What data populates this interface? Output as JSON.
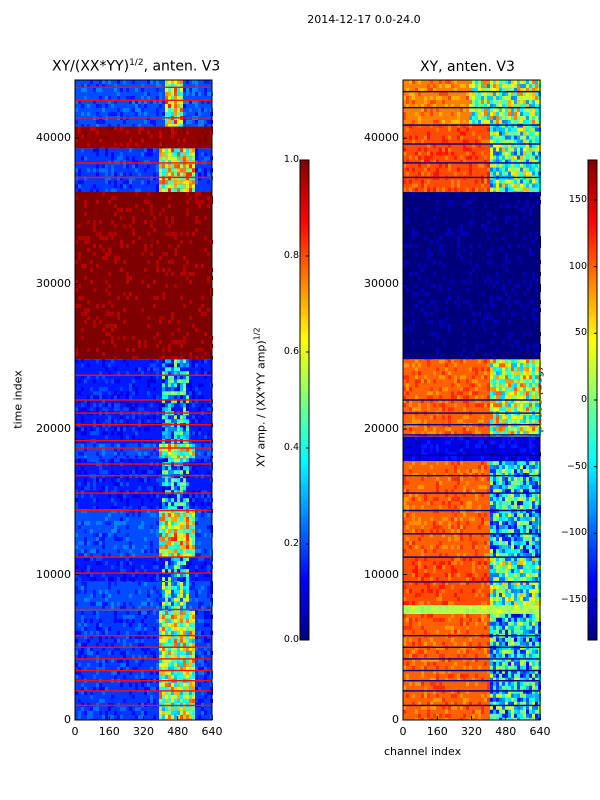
{
  "figure_title": "2014-12-17 0.0-24.0",
  "colors": {
    "jet": [
      "#00007f",
      "#0000ff",
      "#007fff",
      "#00ffff",
      "#7fff7f",
      "#ffff00",
      "#ff7f00",
      "#ff0000",
      "#7f0000"
    ]
  },
  "chart_data": [
    {
      "type": "heatmap",
      "title": "XY/(XX*YY)$^{1/2}$, anten. V3",
      "title_display": "XY/(XX*YY)",
      "title_sup": "1/2",
      "title_suffix": ", anten. V3",
      "xlabel": "",
      "ylabel": "time index",
      "xlim": [
        0,
        640
      ],
      "ylim": [
        0,
        44000
      ],
      "xticks": [
        "0",
        "160",
        "320",
        "480",
        "640"
      ],
      "yticks": [
        "0",
        "10000",
        "20000",
        "30000",
        "40000"
      ],
      "colorbar": {
        "label": "XY amp. / (XX*YY amp)",
        "label_sup": "1/2",
        "range": [
          0.0,
          1.0
        ],
        "ticks": [
          "0.0",
          "0.2",
          "0.4",
          "0.6",
          "0.8",
          "1.0"
        ]
      },
      "bands": [
        {
          "y0": 0,
          "y1": 7500,
          "level": 0.18,
          "hot": [
            380,
            560
          ],
          "hot_level": 0.55
        },
        {
          "y0": 7500,
          "y1": 9500,
          "level": 0.2,
          "hot": [
            400,
            520
          ],
          "hot_level": 0.4
        },
        {
          "y0": 9500,
          "y1": 11200,
          "level": 0.15,
          "hot": [
            400,
            520
          ],
          "hot_level": 0.3
        },
        {
          "y0": 11200,
          "y1": 14500,
          "level": 0.2,
          "hot": [
            380,
            560
          ],
          "hot_level": 0.6
        },
        {
          "y0": 14500,
          "y1": 18000,
          "level": 0.15,
          "hot": [
            400,
            520
          ],
          "hot_level": 0.3
        },
        {
          "y0": 18000,
          "y1": 19000,
          "level": 0.2,
          "hot": [
            380,
            560
          ],
          "hot_level": 0.55
        },
        {
          "y0": 19000,
          "y1": 24800,
          "level": 0.15,
          "hot": [
            400,
            520
          ],
          "hot_level": 0.3
        },
        {
          "y0": 24800,
          "y1": 36300,
          "level": 1.0,
          "hot": [
            0,
            0
          ],
          "hot_level": 1.0
        },
        {
          "y0": 36300,
          "y1": 39300,
          "level": 0.18,
          "hot": [
            380,
            560
          ],
          "hot_level": 0.6
        },
        {
          "y0": 39300,
          "y1": 40800,
          "level": 0.98,
          "hot": [
            0,
            0
          ],
          "hot_level": 0.98
        },
        {
          "y0": 40800,
          "y1": 44000,
          "level": 0.2,
          "hot": [
            420,
            500
          ],
          "hot_level": 0.6
        }
      ],
      "rows_y": [
        1000,
        2000,
        2700,
        3400,
        4200,
        5000,
        5800,
        7600,
        10100,
        11200,
        14400,
        15600,
        16800,
        17600,
        18700,
        19200,
        20300,
        21100,
        22000,
        23700,
        37300,
        38300,
        41400,
        42600,
        43500
      ]
    },
    {
      "type": "heatmap",
      "title": "XY, anten. V3",
      "xlabel": "channel index",
      "ylabel": "",
      "xlim": [
        0,
        640
      ],
      "ylim": [
        0,
        44000
      ],
      "xticks": [
        "0",
        "160",
        "320",
        "480",
        "640"
      ],
      "yticks": [
        "0",
        "10000",
        "20000",
        "30000",
        "40000"
      ],
      "colorbar": {
        "label": "phase (deg)",
        "range": [
          -180,
          180
        ],
        "ticks": [
          "150",
          "100",
          "50",
          "0",
          "−50",
          "−100",
          "−150"
        ]
      },
      "bands": [
        {
          "y0": 0,
          "y1": 7300,
          "level": 0.78,
          "hot": [
            400,
            640
          ],
          "hot_level": 0.35
        },
        {
          "y0": 7300,
          "y1": 7900,
          "level": 0.55,
          "hot": [
            0,
            0
          ],
          "hot_level": 0.55
        },
        {
          "y0": 7900,
          "y1": 11200,
          "level": 0.8,
          "hot": [
            400,
            640
          ],
          "hot_level": 0.45
        },
        {
          "y0": 11200,
          "y1": 17800,
          "level": 0.78,
          "hot": [
            400,
            640
          ],
          "hot_level": 0.35
        },
        {
          "y0": 17800,
          "y1": 19500,
          "level": 0.1,
          "hot": [
            0,
            0
          ],
          "hot_level": 0.1
        },
        {
          "y0": 19500,
          "y1": 24800,
          "level": 0.78,
          "hot": [
            400,
            640
          ],
          "hot_level": 0.55
        },
        {
          "y0": 24800,
          "y1": 36300,
          "level": 0.0,
          "hot": [
            0,
            0
          ],
          "hot_level": 0.0
        },
        {
          "y0": 36300,
          "y1": 41000,
          "level": 0.8,
          "hot": [
            400,
            640
          ],
          "hot_level": 0.45
        },
        {
          "y0": 41000,
          "y1": 44000,
          "level": 0.75,
          "hot": [
            300,
            640
          ],
          "hot_level": 0.5
        }
      ],
      "rows_y": [
        1000,
        2000,
        2700,
        3400,
        4200,
        5000,
        5800,
        9500,
        11200,
        12800,
        14400,
        15600,
        16800,
        18200,
        19600,
        20300,
        21100,
        22000,
        37300,
        38300,
        39600,
        40900,
        42100,
        43200
      ]
    }
  ]
}
